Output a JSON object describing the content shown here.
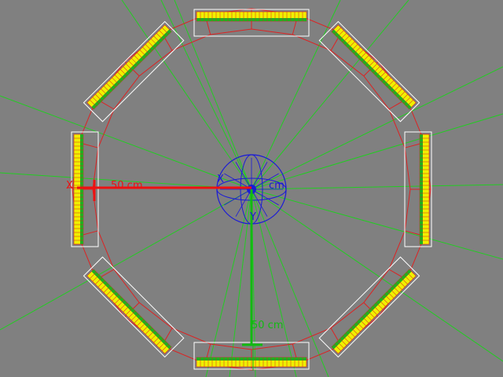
{
  "scene": {
    "background": "#808080",
    "colors": {
      "ring": "#dd2222",
      "module_outline": "#ffffff",
      "module_fill": "#f0f000",
      "module_strip": "#20b020",
      "tracks": "#22cc22",
      "x_axis": "#ee1111",
      "y_axis": "#11bb11",
      "gizmo": "#1a1ad8"
    },
    "labels": {
      "x_scale": "50 cm",
      "y_scale": "50 cm",
      "gizmo_scale": "cm",
      "x_axis": "X",
      "gizmo_x": "X",
      "gizmo_y": "Y"
    },
    "module_count": 8,
    "track_count": 18
  }
}
